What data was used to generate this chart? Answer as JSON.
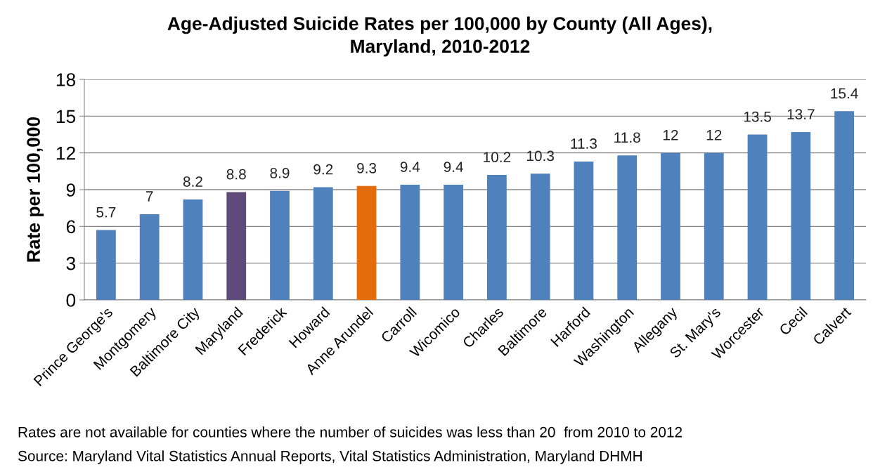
{
  "chart_data": {
    "type": "bar",
    "title": "Age-Adjusted Suicide Rates per 100,000 by County (All Ages),\nMaryland, 2010-2012",
    "ylabel": "Rate per 100,000",
    "categories": [
      "Prince George's",
      "Montgomery",
      "Baltimore City",
      "Maryland",
      "Frederick",
      "Howard",
      "Anne Arundel",
      "Carroll",
      "Wicomico",
      "Charles",
      "Baltimore",
      "Harford",
      "Washington",
      "Allegany",
      "St. Mary's",
      "Worcester",
      "Cecil",
      "Calvert"
    ],
    "values": [
      5.7,
      7,
      8.2,
      8.8,
      8.9,
      9.2,
      9.3,
      9.4,
      9.4,
      10.2,
      10.3,
      11.3,
      11.8,
      12,
      12,
      13.5,
      13.7,
      15.4
    ],
    "colors": [
      "#4f81bd",
      "#4f81bd",
      "#4f81bd",
      "#604a7b",
      "#4f81bd",
      "#4f81bd",
      "#e46c0a",
      "#4f81bd",
      "#4f81bd",
      "#4f81bd",
      "#4f81bd",
      "#4f81bd",
      "#4f81bd",
      "#4f81bd",
      "#4f81bd",
      "#4f81bd",
      "#4f81bd",
      "#4f81bd"
    ],
    "ylim": [
      0,
      18
    ],
    "yticks": [
      0,
      3,
      6,
      9,
      12,
      15,
      18
    ],
    "grid": "y",
    "data_labels": true,
    "legend": false,
    "annotations": [
      "Rates are not available for counties where the number of suicides was less than 20  from 2010 to 2012",
      "Source: Maryland Vital Statistics Annual Reports, Vital Statistics Administration, Maryland DHMH"
    ]
  }
}
